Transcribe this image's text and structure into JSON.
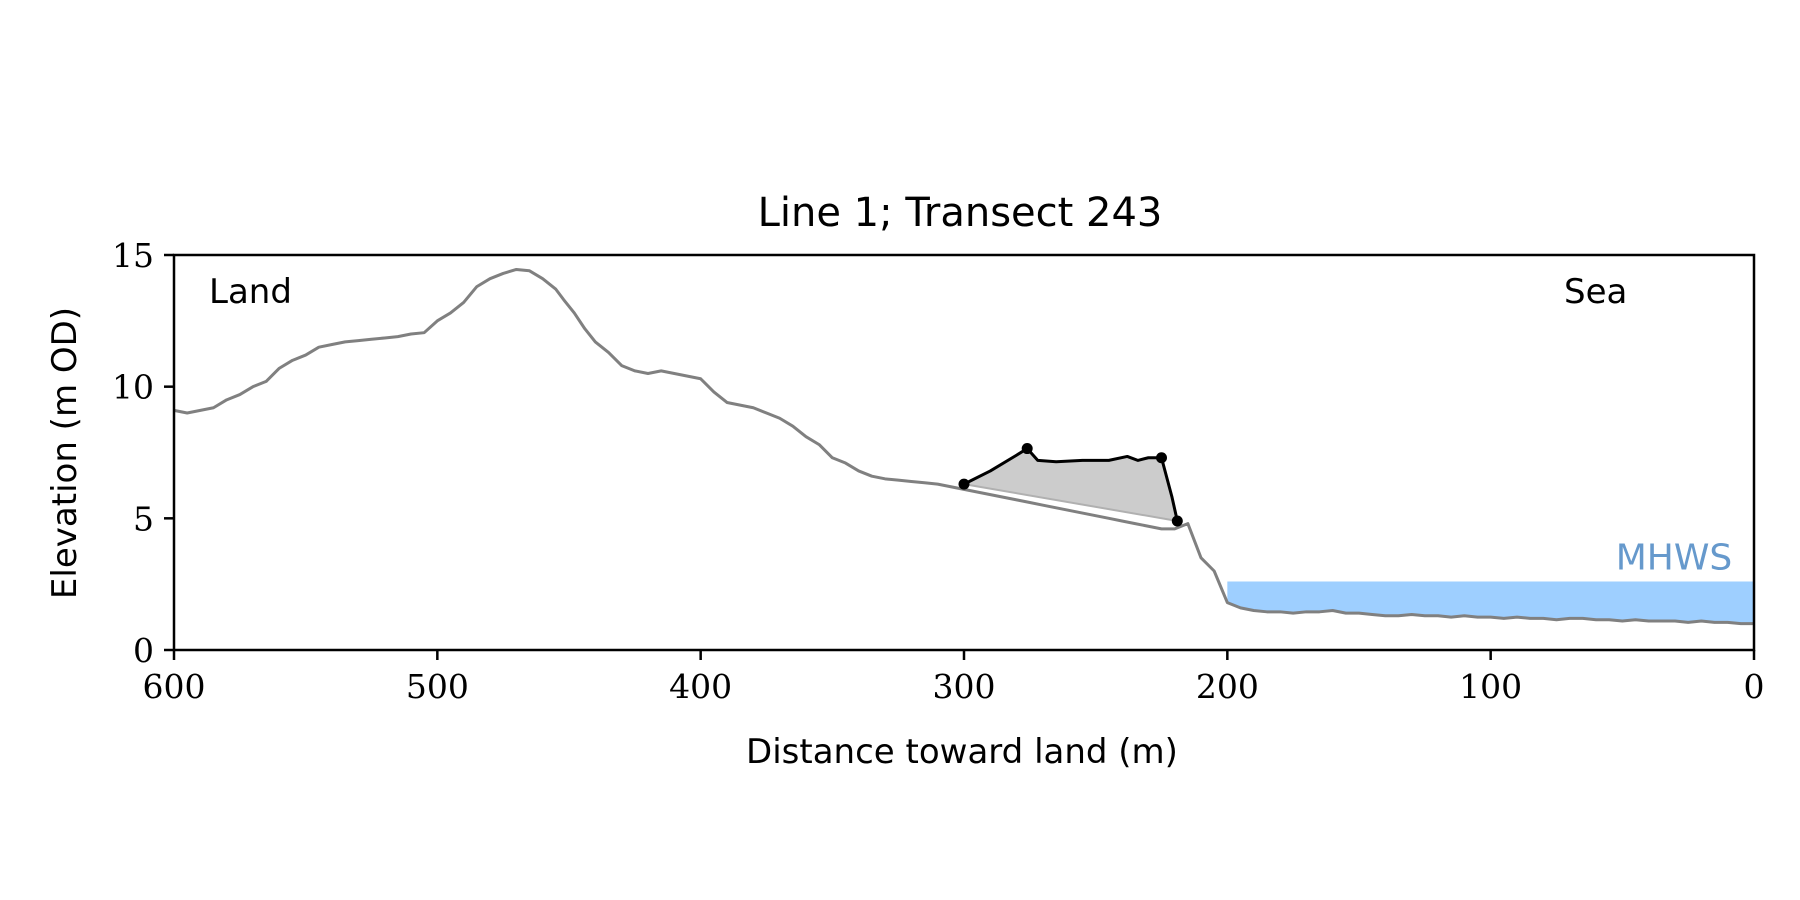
{
  "chart_data": {
    "type": "line",
    "title": "Line 1; Transect 243",
    "xlabel": "Distance toward land (m)",
    "ylabel": "Elevation (m OD)",
    "xlim": [
      600,
      0
    ],
    "ylim": [
      0,
      15
    ],
    "x_ticks": [
      600,
      500,
      400,
      300,
      200,
      100,
      0
    ],
    "y_ticks": [
      0,
      5,
      10,
      15
    ],
    "grid": false,
    "annotations": {
      "land": "Land",
      "sea": "Sea",
      "mhws": "MHWS"
    },
    "colors": {
      "profile": "#808080",
      "feature": "#000000",
      "fill": "#cccccc",
      "mhws": "#9ecfff",
      "mhws_text": "#6699cc"
    },
    "mhws": {
      "x_from": 200,
      "x_to": 0,
      "level": 2.6
    },
    "series": [
      {
        "role": "profile",
        "x": [
          600,
          595,
          590,
          585,
          580,
          575,
          570,
          565,
          560,
          555,
          550,
          545,
          540,
          535,
          530,
          525,
          520,
          515,
          510,
          505,
          500,
          495,
          490,
          485,
          480,
          475,
          470,
          465,
          460,
          455,
          452,
          448,
          444,
          440,
          435,
          430,
          425,
          420,
          415,
          410,
          405,
          400,
          395,
          390,
          385,
          380,
          375,
          370,
          365,
          360,
          355,
          350,
          345,
          340,
          335,
          330,
          325,
          320,
          315,
          310,
          305,
          300,
          295,
          290,
          285,
          280,
          275,
          270,
          265,
          260,
          255,
          250,
          245,
          240,
          235,
          230,
          225,
          220,
          215,
          210,
          205,
          200,
          195,
          190,
          185,
          180,
          175,
          170,
          165,
          160,
          155,
          150,
          145,
          140,
          135,
          130,
          125,
          120,
          115,
          110,
          105,
          100,
          95,
          90,
          85,
          80,
          75,
          70,
          65,
          60,
          55,
          50,
          45,
          40,
          35,
          30,
          25,
          20,
          15,
          10,
          5,
          0
        ],
        "y": [
          9.1,
          9.0,
          9.1,
          9.2,
          9.5,
          9.7,
          10.0,
          10.2,
          10.7,
          11.0,
          11.2,
          11.5,
          11.6,
          11.7,
          11.75,
          11.8,
          11.85,
          11.9,
          12.0,
          12.05,
          12.5,
          12.8,
          13.2,
          13.8,
          14.1,
          14.3,
          14.45,
          14.4,
          14.1,
          13.7,
          13.3,
          12.8,
          12.2,
          11.7,
          11.3,
          10.8,
          10.6,
          10.5,
          10.6,
          10.5,
          10.4,
          10.3,
          9.8,
          9.4,
          9.3,
          9.2,
          9.0,
          8.8,
          8.5,
          8.1,
          7.8,
          7.3,
          7.1,
          6.8,
          6.6,
          6.5,
          6.45,
          6.4,
          6.35,
          6.3,
          6.2,
          6.1,
          6.0,
          5.9,
          5.8,
          5.7,
          5.6,
          5.5,
          5.4,
          5.3,
          5.2,
          5.1,
          5.0,
          4.9,
          4.8,
          4.7,
          4.6,
          4.6,
          4.8,
          3.5,
          3.0,
          1.8,
          1.6,
          1.5,
          1.45,
          1.45,
          1.4,
          1.45,
          1.45,
          1.5,
          1.4,
          1.4,
          1.35,
          1.3,
          1.3,
          1.35,
          1.3,
          1.3,
          1.25,
          1.3,
          1.25,
          1.25,
          1.2,
          1.25,
          1.2,
          1.2,
          1.15,
          1.2,
          1.2,
          1.15,
          1.15,
          1.1,
          1.15,
          1.1,
          1.1,
          1.1,
          1.05,
          1.1,
          1.05,
          1.05,
          1.0,
          1.0
        ]
      },
      {
        "role": "feature",
        "x": [
          300,
          290,
          280,
          276,
          272,
          265,
          255,
          245,
          238,
          234,
          230,
          225,
          221,
          219
        ],
        "y": [
          6.3,
          6.8,
          7.4,
          7.65,
          7.2,
          7.15,
          7.2,
          7.2,
          7.35,
          7.2,
          7.3,
          7.3,
          5.8,
          4.9
        ]
      }
    ],
    "markers": [
      {
        "x": 300,
        "y": 6.3
      },
      {
        "x": 276,
        "y": 7.65
      },
      {
        "x": 225,
        "y": 7.3
      },
      {
        "x": 219,
        "y": 4.9
      }
    ]
  }
}
